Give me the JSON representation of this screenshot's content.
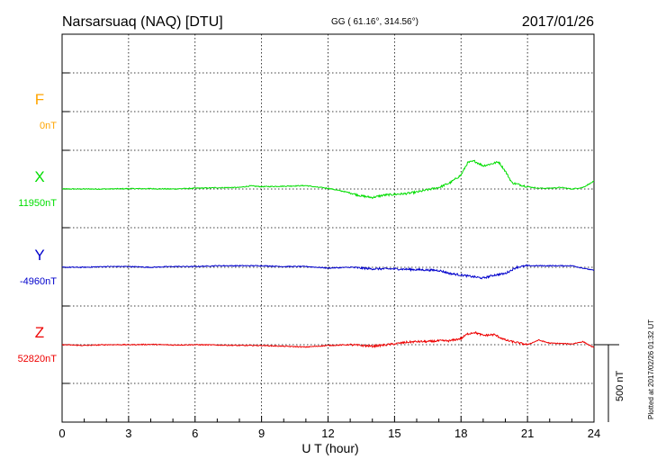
{
  "header": {
    "station": "Narsarsuaq (NAQ)  [DTU]",
    "coords": "GG ( 61.16°, 314.56°)",
    "date": "2017/01/26"
  },
  "scale_label": "500 nT",
  "plotted_note": "Plotted at 2017/02/26 01:32 UT",
  "chart_data": {
    "type": "line",
    "xlabel": "U T (hour)",
    "x_ticks": [
      0,
      3,
      6,
      9,
      12,
      15,
      18,
      21,
      24
    ],
    "xlim": [
      0,
      24
    ],
    "grid": true,
    "scale_nT": 500,
    "channels": [
      {
        "name": "F",
        "baseline": "0nT",
        "color": "#FFA500",
        "values": []
      },
      {
        "name": "X",
        "baseline": "11950nT",
        "color": "#00DD00",
        "points": [
          [
            0,
            0
          ],
          [
            1,
            0
          ],
          [
            2,
            0
          ],
          [
            3,
            2
          ],
          [
            4,
            2
          ],
          [
            5,
            0
          ],
          [
            6,
            5
          ],
          [
            7,
            8
          ],
          [
            8,
            10
          ],
          [
            8.5,
            20
          ],
          [
            9,
            15
          ],
          [
            10,
            18
          ],
          [
            11,
            22
          ],
          [
            11.5,
            12
          ],
          [
            12,
            5
          ],
          [
            12.5,
            -10
          ],
          [
            13,
            -25
          ],
          [
            13.5,
            -45
          ],
          [
            14,
            -55
          ],
          [
            14.5,
            -40
          ],
          [
            15,
            -35
          ],
          [
            15.5,
            -30
          ],
          [
            16,
            -20
          ],
          [
            16.5,
            -5
          ],
          [
            17,
            10
          ],
          [
            17.5,
            40
          ],
          [
            18,
            90
          ],
          [
            18.3,
            170
          ],
          [
            18.6,
            180
          ],
          [
            19,
            150
          ],
          [
            19.3,
            160
          ],
          [
            19.7,
            175
          ],
          [
            20,
            115
          ],
          [
            20.3,
            40
          ],
          [
            21,
            15
          ],
          [
            21.5,
            5
          ],
          [
            22,
            5
          ],
          [
            22.5,
            10
          ],
          [
            23,
            0
          ],
          [
            23.5,
            10
          ],
          [
            24,
            50
          ]
        ]
      },
      {
        "name": "Y",
        "baseline": "-4960nT",
        "color": "#0000CC",
        "points": [
          [
            0,
            0
          ],
          [
            1,
            0
          ],
          [
            2,
            5
          ],
          [
            3,
            5
          ],
          [
            4,
            0
          ],
          [
            5,
            5
          ],
          [
            6,
            5
          ],
          [
            7,
            10
          ],
          [
            8,
            10
          ],
          [
            9,
            10
          ],
          [
            10,
            5
          ],
          [
            11,
            5
          ],
          [
            12,
            -5
          ],
          [
            13,
            0
          ],
          [
            14,
            -10
          ],
          [
            15,
            -10
          ],
          [
            16,
            -15
          ],
          [
            17,
            -20
          ],
          [
            17.5,
            -40
          ],
          [
            18,
            -50
          ],
          [
            18.5,
            -60
          ],
          [
            19,
            -70
          ],
          [
            19.5,
            -50
          ],
          [
            20,
            -40
          ],
          [
            20.5,
            0
          ],
          [
            21,
            10
          ],
          [
            22,
            10
          ],
          [
            23,
            10
          ],
          [
            24,
            -20
          ]
        ]
      },
      {
        "name": "Z",
        "baseline": "52820nT",
        "color": "#EE0000",
        "points": [
          [
            0,
            0
          ],
          [
            1,
            -5
          ],
          [
            2,
            0
          ],
          [
            3,
            0
          ],
          [
            4,
            2
          ],
          [
            5,
            -2
          ],
          [
            6,
            0
          ],
          [
            7,
            -2
          ],
          [
            8,
            -5
          ],
          [
            9,
            -5
          ],
          [
            10,
            -10
          ],
          [
            11,
            -15
          ],
          [
            12,
            -5
          ],
          [
            13,
            0
          ],
          [
            14,
            -10
          ],
          [
            15,
            5
          ],
          [
            15.5,
            15
          ],
          [
            16,
            20
          ],
          [
            16.5,
            20
          ],
          [
            17,
            25
          ],
          [
            17.5,
            25
          ],
          [
            18,
            40
          ],
          [
            18.3,
            70
          ],
          [
            18.6,
            80
          ],
          [
            19,
            60
          ],
          [
            19.5,
            65
          ],
          [
            20,
            30
          ],
          [
            20.3,
            20
          ],
          [
            21,
            0
          ],
          [
            21.5,
            30
          ],
          [
            22,
            10
          ],
          [
            23,
            5
          ],
          [
            23.5,
            20
          ],
          [
            24,
            -20
          ]
        ]
      }
    ]
  }
}
